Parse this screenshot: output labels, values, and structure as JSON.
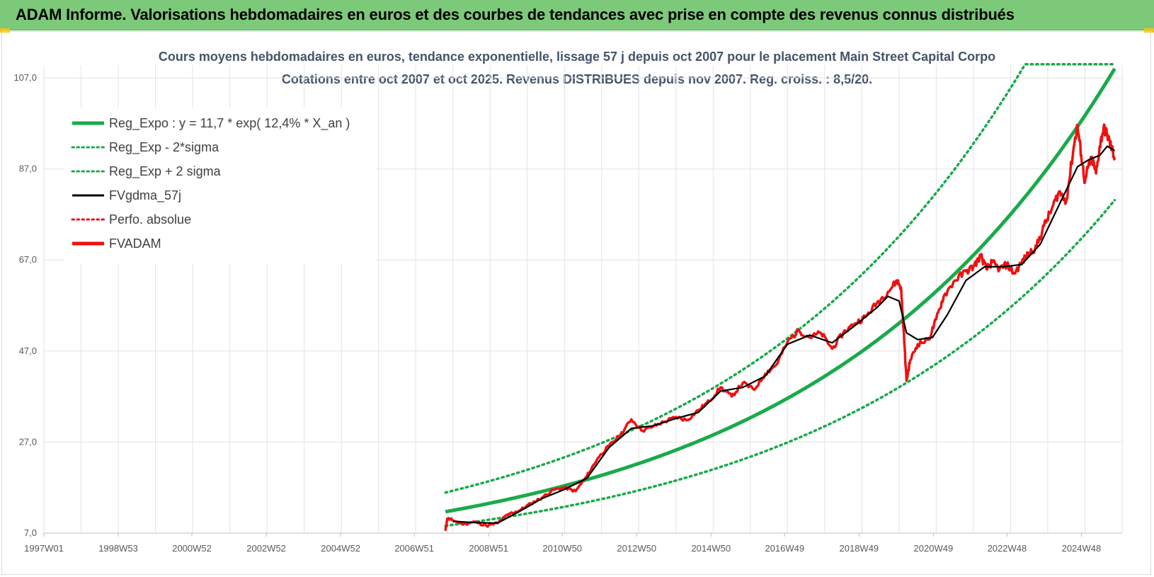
{
  "header": {
    "title": "ADAM Informe. Valorisations hebdomadaires en euros et des courbes de tendances avec prise en compte des revenus connus distribués"
  },
  "colors": {
    "header_bg": "#7dc97a",
    "trend": "#1aaa4b",
    "smooth": "#000000",
    "price": "#ee1111",
    "grid": "#e3e3e3"
  },
  "chart_data": {
    "type": "line",
    "title": "Cours moyens hebdomadaires en euros, tendance exponentielle, lissage 57 j depuis oct 2007 pour le placement Main Street Capital Corpo",
    "subtitle": "Cotations entre oct 2007 et oct 2025. Revenus DISTRIBUES depuis nov 2007. Reg. croiss. : 8,5/20.",
    "x_tick_labels": [
      "1997W01",
      "1998W53",
      "2000W52",
      "2002W52",
      "2004W52",
      "2006W51",
      "2008W51",
      "2010W50",
      "2012W50",
      "2014W50",
      "2016W49",
      "2018W49",
      "2020W49",
      "2022W48",
      "2024W48"
    ],
    "y_tick_labels": [
      "7,0",
      "27,0",
      "47,0",
      "67,0",
      "87,0",
      "107,0"
    ],
    "xlim": [
      1997.0,
      2026.0
    ],
    "ylim": [
      7,
      110
    ],
    "grid": true,
    "legend_position": "top-left",
    "legend": [
      {
        "label": "Reg_Expo : y = 11,7 * exp( 12,4% *  X_an )",
        "style": "solid-thick",
        "color": "#1aaa4b"
      },
      {
        "label": "Reg_Exp - 2*sigma",
        "style": "dotted",
        "color": "#1aaa4b"
      },
      {
        "label": "Reg_Exp + 2 sigma",
        "style": "dotted",
        "color": "#1aaa4b"
      },
      {
        "label": "FVgdma_57j",
        "style": "solid",
        "color": "#000000"
      },
      {
        "label": "Perfo. absolue",
        "style": "dotted",
        "color": "#ee1111"
      },
      {
        "label": "FVADAM",
        "style": "solid-thick",
        "color": "#ee1111"
      }
    ],
    "trend": {
      "a": 11.7,
      "rate": 0.124,
      "x_start": 2007.8,
      "x_end": 2025.8,
      "lower_factor": 0.735,
      "upper_factor": 1.36,
      "upper_cap": 110
    },
    "series": [
      {
        "name": "FVADAM",
        "x": [
          2007.8,
          2007.85,
          2008.0,
          2008.3,
          2008.6,
          2008.9,
          2009.2,
          2009.5,
          2009.8,
          2010.1,
          2010.4,
          2010.7,
          2011.0,
          2011.3,
          2011.6,
          2011.9,
          2012.2,
          2012.5,
          2012.8,
          2013.1,
          2013.4,
          2013.7,
          2014.0,
          2014.3,
          2014.6,
          2014.9,
          2015.2,
          2015.5,
          2015.8,
          2016.1,
          2016.4,
          2016.7,
          2017.0,
          2017.3,
          2017.6,
          2017.9,
          2018.2,
          2018.5,
          2018.8,
          2019.1,
          2019.4,
          2019.7,
          2019.95,
          2020.05,
          2020.12,
          2020.2,
          2020.3,
          2020.5,
          2020.8,
          2021.0,
          2021.2,
          2021.5,
          2021.8,
          2022.0,
          2022.2,
          2022.35,
          2022.5,
          2022.7,
          2022.9,
          2023.1,
          2023.3,
          2023.5,
          2023.7,
          2023.9,
          2024.1,
          2024.3,
          2024.5,
          2024.7,
          2024.8,
          2024.9,
          2025.0,
          2025.1,
          2025.2,
          2025.3,
          2025.4,
          2025.5,
          2025.6,
          2025.7,
          2025.8
        ],
        "y": [
          7.5,
          10.2,
          9.8,
          9.0,
          9.5,
          8.6,
          9.2,
          11.2,
          12.0,
          13.5,
          14.8,
          16.5,
          17.0,
          16.2,
          19.5,
          23.5,
          26.2,
          28.5,
          32.0,
          29.5,
          30.5,
          31.5,
          32.5,
          31.8,
          34.0,
          36.0,
          39.0,
          37.0,
          40.0,
          38.5,
          42.0,
          44.0,
          49.0,
          51.5,
          50.0,
          51.0,
          47.5,
          51.0,
          53.0,
          54.5,
          57.5,
          60.0,
          62.5,
          61.0,
          52.0,
          40.5,
          45.0,
          48.5,
          49.5,
          54.0,
          59.0,
          62.5,
          64.5,
          65.5,
          68.0,
          65.0,
          66.5,
          65.0,
          66.0,
          64.0,
          66.5,
          68.5,
          70.0,
          74.5,
          78.0,
          82.0,
          80.0,
          92.0,
          96.5,
          90.0,
          84.0,
          88.0,
          89.0,
          86.0,
          92.0,
          96.0,
          94.5,
          92.0,
          89.5
        ]
      },
      {
        "name": "FVgdma_57j",
        "x": [
          2008.0,
          2008.6,
          2009.2,
          2009.8,
          2010.4,
          2011.0,
          2011.6,
          2012.2,
          2012.8,
          2013.4,
          2014.0,
          2014.6,
          2015.2,
          2015.8,
          2016.4,
          2017.0,
          2017.6,
          2018.2,
          2018.8,
          2019.4,
          2019.7,
          2020.0,
          2020.2,
          2020.5,
          2020.9,
          2021.3,
          2021.8,
          2022.3,
          2022.8,
          2023.3,
          2023.8,
          2024.3,
          2024.8,
          2025.1,
          2025.4,
          2025.6,
          2025.8
        ],
        "y": [
          9.6,
          9.3,
          9.2,
          11.8,
          14.6,
          16.6,
          19.0,
          25.8,
          30.0,
          30.6,
          32.2,
          33.5,
          38.2,
          39.0,
          41.5,
          48.5,
          50.5,
          48.8,
          52.5,
          56.5,
          59.0,
          58.0,
          51.0,
          49.5,
          50.0,
          55.0,
          62.5,
          65.5,
          65.5,
          66.0,
          70.5,
          79.0,
          87.5,
          89.0,
          90.0,
          92.0,
          91.0
        ]
      }
    ]
  }
}
